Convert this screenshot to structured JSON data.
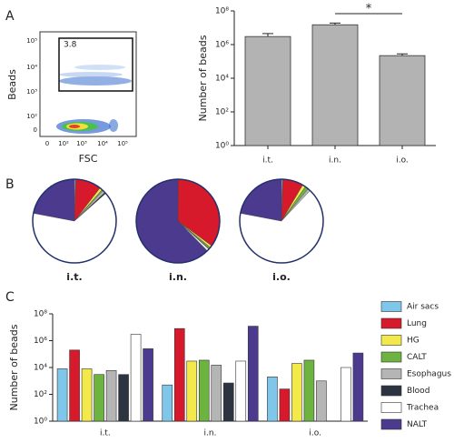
{
  "panels": [
    "A",
    "B",
    "C"
  ],
  "flow_plot": {
    "x_label": "FSC",
    "y_label": "Beads",
    "gate_label": "3.8",
    "yticks": [
      "10⁵",
      "10⁴",
      "10³",
      "10²",
      "0"
    ],
    "xticks": [
      "0",
      "10²",
      "10³",
      "10⁴",
      "10⁵"
    ]
  },
  "chart_data": [
    {
      "type": "bar",
      "ylabel": "Number of beads",
      "log": true,
      "color": "#b3b3b3",
      "categories": [
        "i.t.",
        "i.n.",
        "i.o."
      ],
      "values": [
        3000000,
        15000000,
        220000
      ],
      "errors": [
        1500000,
        4000000,
        60000
      ],
      "ylim": [
        1,
        100000000
      ],
      "yticks": [
        {
          "value": 1,
          "label": "10⁰"
        },
        {
          "value": 100,
          "label": "10²"
        },
        {
          "value": 10000,
          "label": "10⁴"
        },
        {
          "value": 1000000,
          "label": "10⁶"
        },
        {
          "value": 100000000,
          "label": "10⁸"
        }
      ],
      "significance": {
        "label": "*",
        "between": [
          1,
          2
        ]
      }
    },
    {
      "type": "pie",
      "title": "i.t.",
      "values": [
        0.5,
        10,
        1,
        0.5,
        1,
        0.5,
        64.5,
        22
      ],
      "colors": [
        "#7fc7ea",
        "#d7192c",
        "#f4e94a",
        "#6db33f",
        "#b5b5b5",
        "#2c3442",
        "#ffffff",
        "#4b3a8e"
      ]
    },
    {
      "type": "pie",
      "title": "i.n.",
      "values": [
        0.1,
        35,
        0.8,
        0.5,
        0.3,
        0.1,
        0.8,
        62.4
      ],
      "colors": [
        "#7fc7ea",
        "#d7192c",
        "#f4e94a",
        "#6db33f",
        "#b5b5b5",
        "#2c3442",
        "#ffffff",
        "#4b3a8e"
      ]
    },
    {
      "type": "pie",
      "title": "i.o.",
      "values": [
        0.5,
        8,
        1.2,
        1.3,
        1,
        0,
        66,
        22
      ],
      "colors": [
        "#7fc7ea",
        "#d7192c",
        "#f4e94a",
        "#6db33f",
        "#b5b5b5",
        "#2c3442",
        "#ffffff",
        "#4b3a8e"
      ]
    },
    {
      "type": "grouped_bar",
      "ylabel": "Number of beads",
      "log": true,
      "categories": [
        "i.t.",
        "i.n.",
        "i.o."
      ],
      "ylim": [
        1,
        100000000
      ],
      "yticks": [
        {
          "value": 1,
          "label": "10⁰"
        },
        {
          "value": 100,
          "label": "10²"
        },
        {
          "value": 10000,
          "label": "10⁴"
        },
        {
          "value": 1000000,
          "label": "10⁶"
        },
        {
          "value": 100000000,
          "label": "10⁸"
        }
      ],
      "series": [
        {
          "name": "Air sacs",
          "color": "#7fc7ea",
          "values": [
            8000,
            500,
            2000
          ]
        },
        {
          "name": "Lung",
          "color": "#d7192c",
          "values": [
            200000,
            8000000,
            250
          ]
        },
        {
          "name": "HG",
          "color": "#f4e94a",
          "values": [
            8000,
            30000,
            20000
          ]
        },
        {
          "name": "CALT",
          "color": "#6db33f",
          "values": [
            3000,
            35000,
            35000
          ]
        },
        {
          "name": "Esophagus",
          "color": "#b5b5b5",
          "values": [
            6000,
            15000,
            1000
          ]
        },
        {
          "name": "Blood",
          "color": "#2c3442",
          "values": [
            3000,
            700,
            null
          ]
        },
        {
          "name": "Trachea",
          "color": "#ffffff",
          "values": [
            3000000,
            30000,
            10000
          ]
        },
        {
          "name": "NALT",
          "color": "#4b3a8e",
          "values": [
            250000,
            12000000,
            120000
          ]
        }
      ]
    }
  ]
}
